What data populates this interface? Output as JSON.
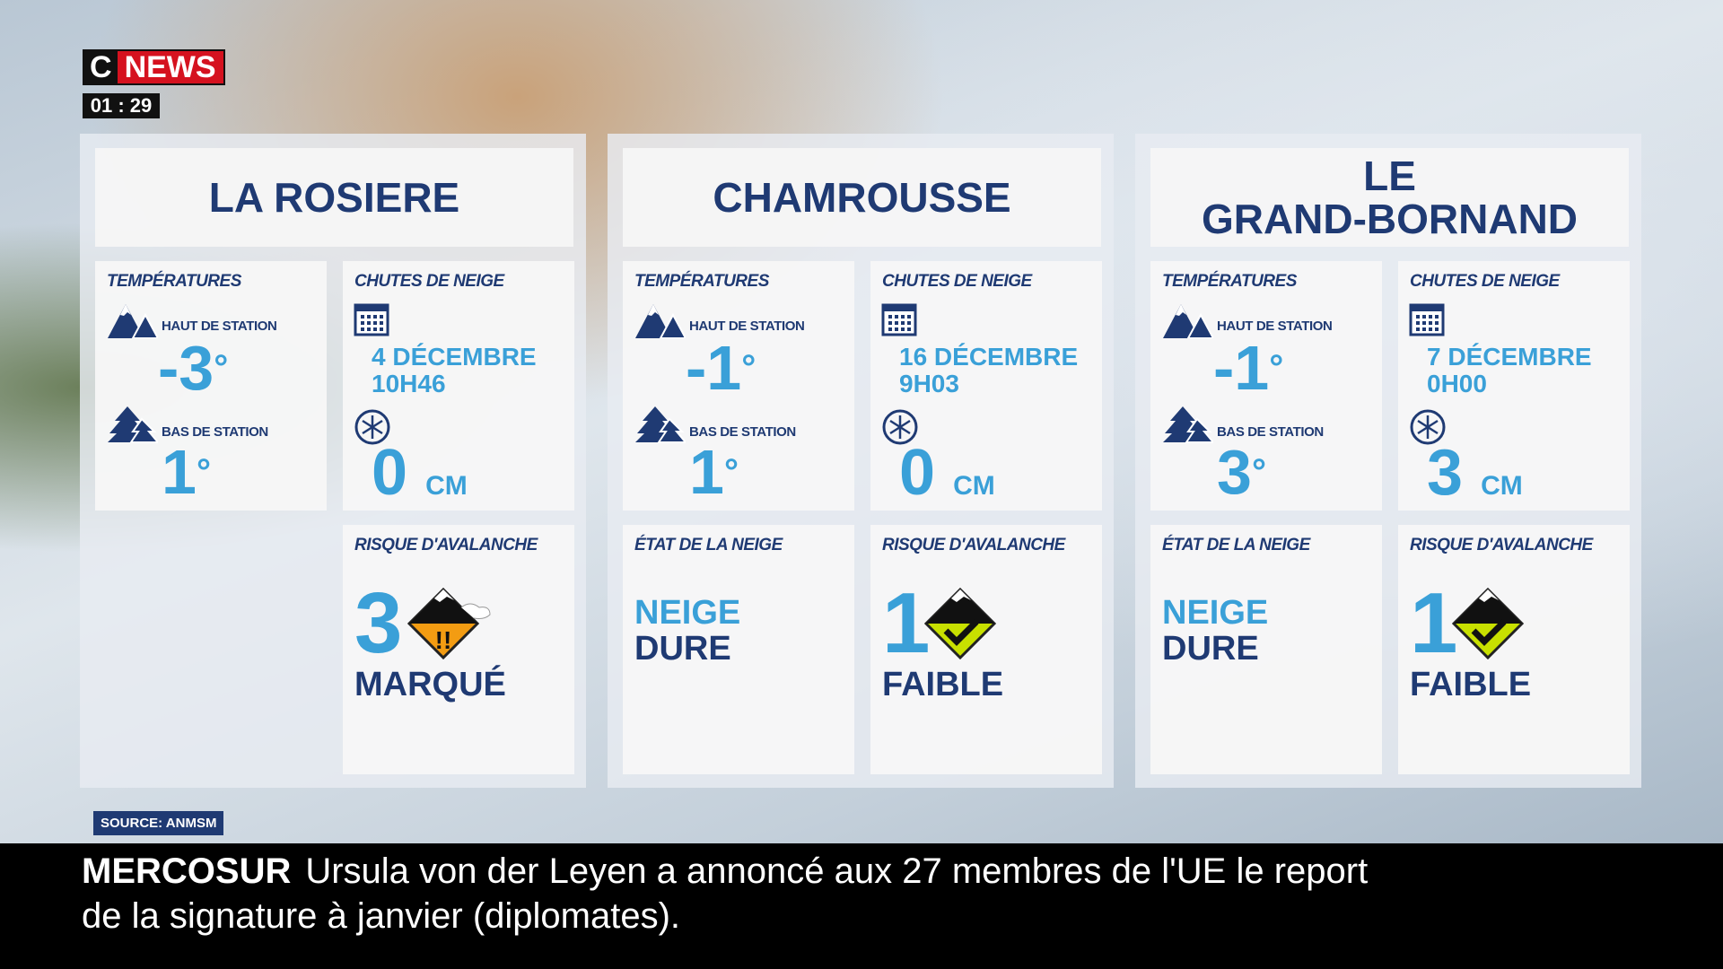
{
  "channel": {
    "logo_c": "C",
    "logo_news": "NEWS",
    "timer": "01 : 29"
  },
  "labels": {
    "temperatures": "TEMPÉRATURES",
    "snowfall": "CHUTES DE NEIGE",
    "top": "HAUT DE STATION",
    "bottom": "BAS DE STATION",
    "avalanche": "RISQUE D'AVALANCHE",
    "snow_state": "ÉTAT DE LA NEIGE",
    "unit": "CM",
    "degree": "°"
  },
  "colors": {
    "navy": "#1f3a73",
    "light_blue": "#3aa0d8",
    "risk_3": "#f39c12",
    "risk_1": "#c8e000"
  },
  "stations": [
    {
      "name": "LA ROSIERE",
      "temp_top": "-3",
      "temp_bottom": "1",
      "date": "4 DÉCEMBRE",
      "time": "10H46",
      "snow": "0",
      "snow_state": null,
      "risk_level": "3",
      "risk_label": "MARQUÉ",
      "risk_icon": "avalanche-risk-3-icon"
    },
    {
      "name": "CHAMROUSSE",
      "temp_top": "-1",
      "temp_bottom": "1",
      "date": "16 DÉCEMBRE",
      "time": "9H03",
      "snow": "0",
      "snow_state": [
        "NEIGE",
        "DURE"
      ],
      "risk_level": "1",
      "risk_label": "FAIBLE",
      "risk_icon": "avalanche-risk-1-icon"
    },
    {
      "name": "LE\nGRAND-BORNAND",
      "temp_top": "-1",
      "temp_bottom": "3",
      "date": "7 DÉCEMBRE",
      "time": "0H00",
      "snow": "3",
      "snow_state": [
        "NEIGE",
        "DURE"
      ],
      "risk_level": "1",
      "risk_label": "FAIBLE",
      "risk_icon": "avalanche-risk-1-icon"
    }
  ],
  "source": "SOURCE: ANMSM",
  "ticker": {
    "topic": "MERCOSUR",
    "text": "Ursula von der Leyen a annoncé aux 27 membres de l'UE le report de la signature à janvier (diplomates)."
  }
}
